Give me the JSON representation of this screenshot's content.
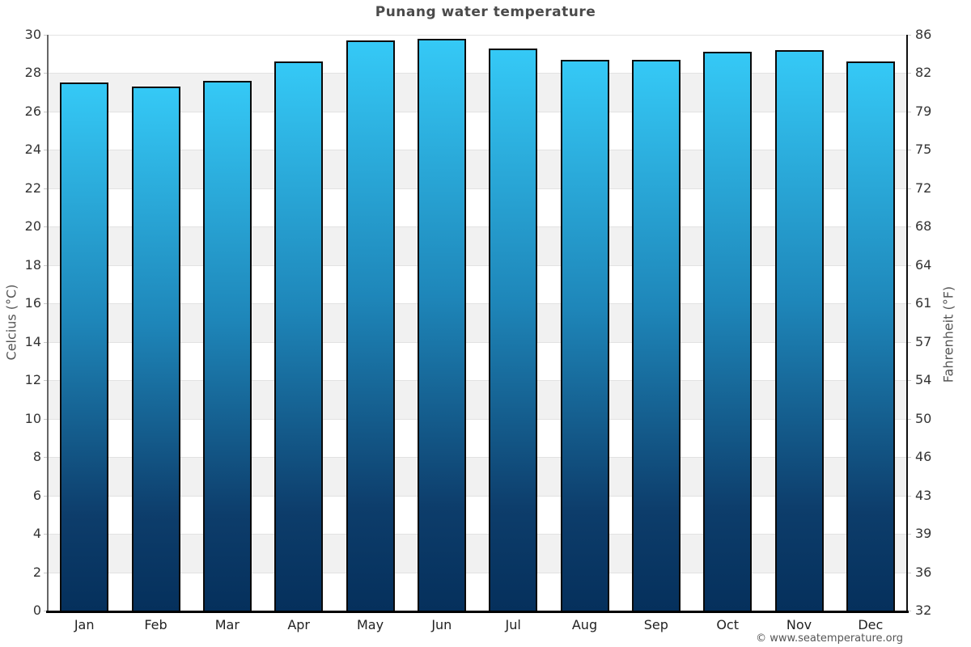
{
  "page": {
    "title": "Punang water temperature"
  },
  "chart_data": {
    "type": "bar",
    "title": "Punang water temperature",
    "categories": [
      "Jan",
      "Feb",
      "Mar",
      "Apr",
      "May",
      "Jun",
      "Jul",
      "Aug",
      "Sep",
      "Oct",
      "Nov",
      "Dec"
    ],
    "values": [
      27.5,
      27.3,
      27.6,
      28.6,
      29.7,
      29.8,
      29.3,
      28.7,
      28.7,
      29.1,
      29.2,
      28.6
    ],
    "series_name": "Water temperature",
    "ylabel_left": "Celcius (°C)",
    "ylabel_right": "Fahrenheit (°F)",
    "ylim": [
      0,
      30
    ],
    "yticks_celsius": [
      0,
      2,
      4,
      6,
      8,
      10,
      12,
      14,
      16,
      18,
      20,
      22,
      24,
      26,
      28,
      30
    ],
    "yticks_fahrenheit_labels": [
      "32",
      "36",
      "39",
      "43",
      "46",
      "50",
      "54",
      "57",
      "61",
      "64",
      "68",
      "72",
      "75",
      "79",
      "82",
      "86"
    ],
    "grid": "horizontal-alternating-bands",
    "legend_position": "none",
    "colors": {
      "bar_gradient_top": "#35c9f6",
      "bar_gradient_mid": "#1e86b9",
      "bar_gradient_bottom": "#05305c",
      "bar_border": "#0a0a0a",
      "band_gray": "#f1f1f1",
      "gridline": "#e2e2e2",
      "title_text": "#4a4a4a",
      "tick_text": "#333333"
    }
  },
  "footer": {
    "credit": "© www.seatemperature.org"
  }
}
